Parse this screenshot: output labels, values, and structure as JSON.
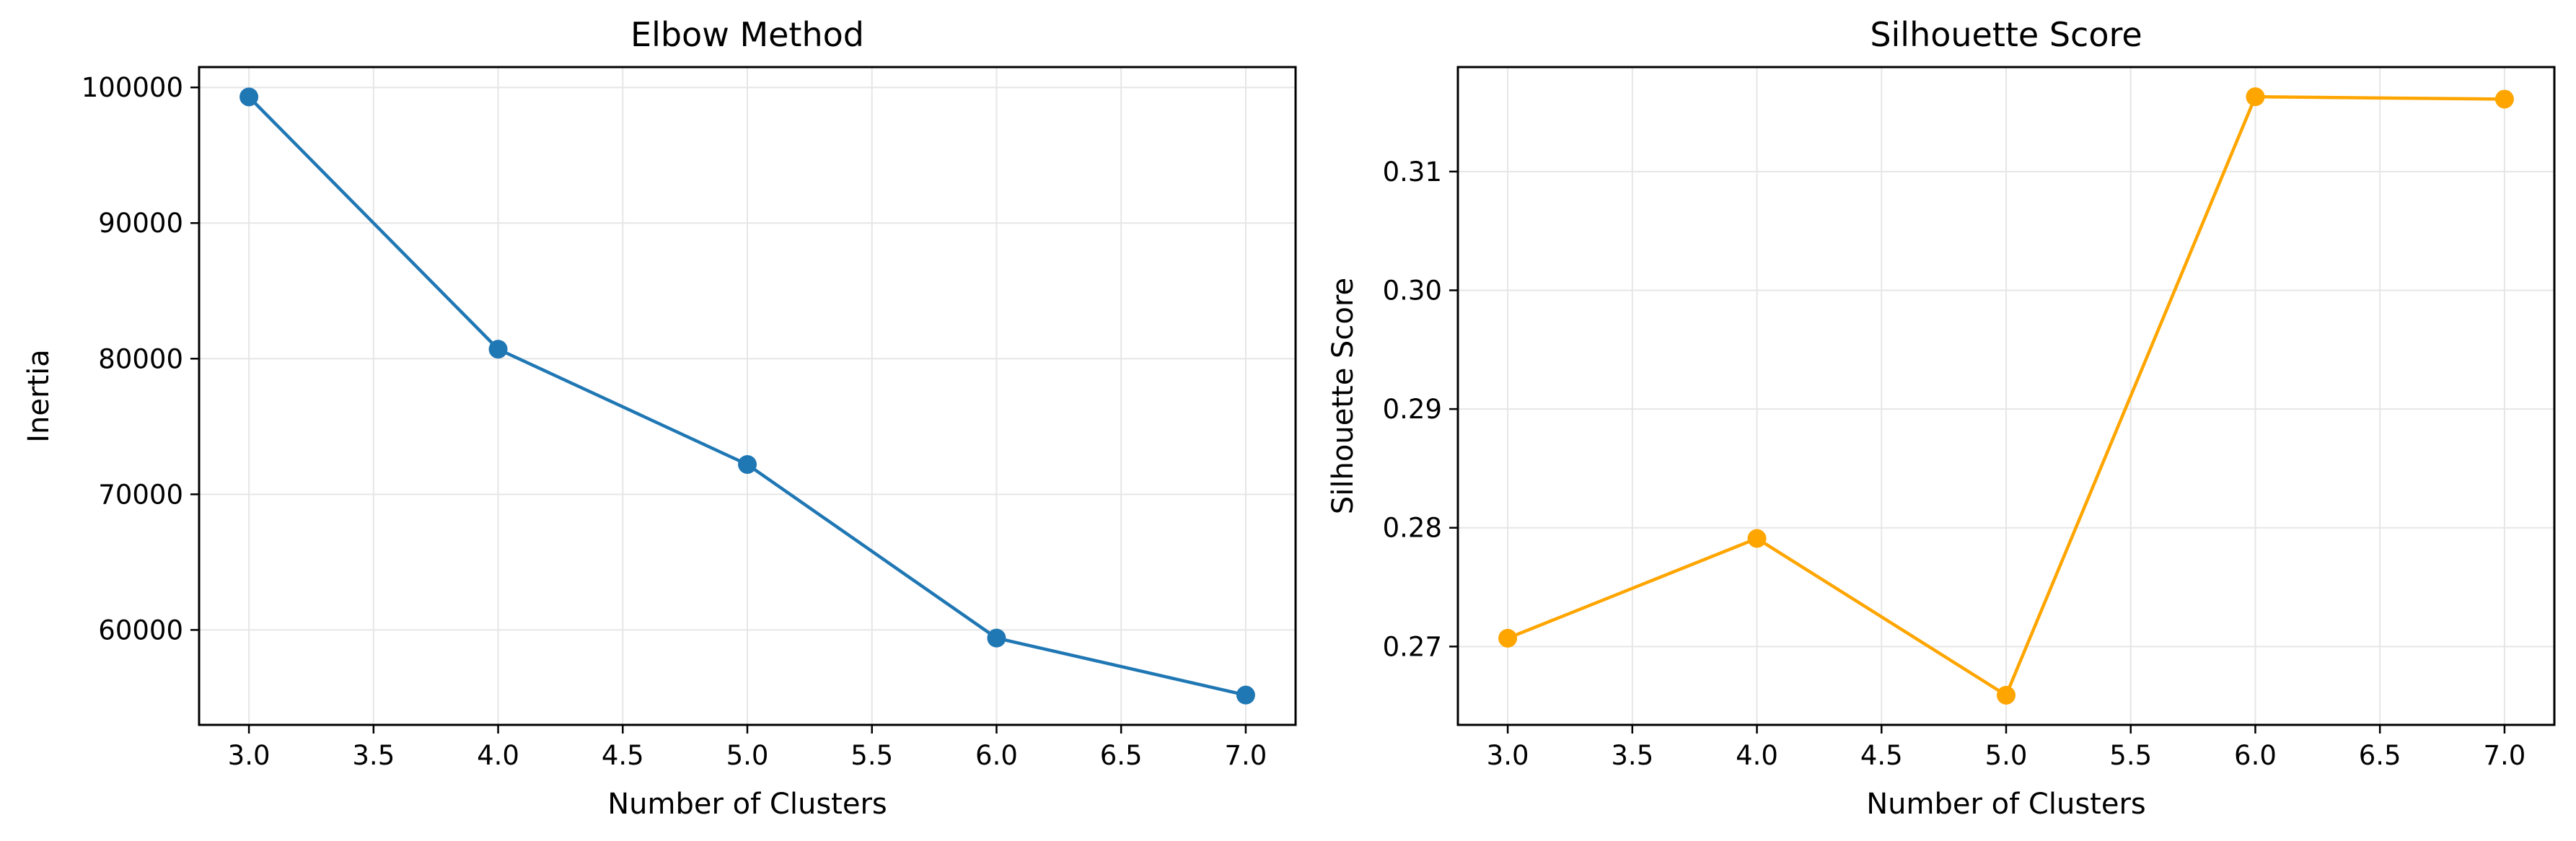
{
  "colors": {
    "elbow_series": "#1f77b4",
    "silhouette_series": "#ffa500",
    "grid": "#e6e6e6",
    "axes": "#000000"
  },
  "chart_data": [
    {
      "type": "line",
      "title": "Elbow Method",
      "xlabel": "Number of Clusters",
      "ylabel": "Inertia",
      "x": [
        3,
        4,
        5,
        6,
        7
      ],
      "series": [
        {
          "values": [
            99300,
            80700,
            72200,
            59400,
            55200
          ],
          "color": "#1f77b4",
          "marker": "circle"
        }
      ],
      "xlim": [
        2.8,
        7.2
      ],
      "ylim": [
        53000,
        101500
      ],
      "xticks": [
        3.0,
        3.5,
        4.0,
        4.5,
        5.0,
        5.5,
        6.0,
        6.5,
        7.0
      ],
      "xtick_labels": [
        "3.0",
        "3.5",
        "4.0",
        "4.5",
        "5.0",
        "5.5",
        "6.0",
        "6.5",
        "7.0"
      ],
      "yticks": [
        60000,
        70000,
        80000,
        90000,
        100000
      ],
      "ytick_labels": [
        "60000",
        "70000",
        "80000",
        "90000",
        "100000"
      ],
      "grid": true
    },
    {
      "type": "line",
      "title": "Silhouette Score",
      "xlabel": "Number of Clusters",
      "ylabel": "Silhouette Score",
      "x": [
        3,
        4,
        5,
        6,
        7
      ],
      "series": [
        {
          "values": [
            0.2707,
            0.2791,
            0.2659,
            0.3163,
            0.3161
          ],
          "color": "#ffa500",
          "marker": "circle"
        }
      ],
      "xlim": [
        2.8,
        7.2
      ],
      "ylim": [
        0.2634,
        0.3188
      ],
      "xticks": [
        3.0,
        3.5,
        4.0,
        4.5,
        5.0,
        5.5,
        6.0,
        6.5,
        7.0
      ],
      "xtick_labels": [
        "3.0",
        "3.5",
        "4.0",
        "4.5",
        "5.0",
        "5.5",
        "6.0",
        "6.5",
        "7.0"
      ],
      "yticks": [
        0.27,
        0.28,
        0.29,
        0.3,
        0.31
      ],
      "ytick_labels": [
        "0.27",
        "0.28",
        "0.29",
        "0.30",
        "0.31"
      ],
      "grid": true
    }
  ]
}
